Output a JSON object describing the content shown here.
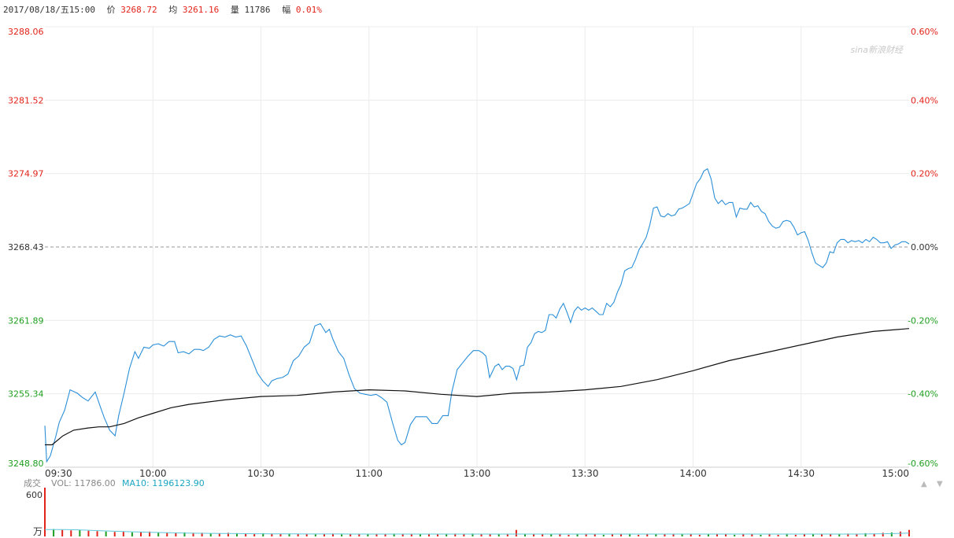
{
  "header": {
    "datetime": "2017/08/18/五15:00",
    "price_label": "价",
    "price": "3268.72",
    "avg_label": "均",
    "avg": "3261.16",
    "vol_label": "量",
    "vol": "11786",
    "change_label": "幅",
    "change": "0.01%"
  },
  "watermark": "sina新浪财经",
  "volume_panel": {
    "title": "成交",
    "vol_label": "VOL: 11786.00",
    "ma_label": "MA10: 1196123.90",
    "y_top_label": "600",
    "unit_label": "万",
    "arrow_up": "▲",
    "arrow_down": "▼"
  },
  "colors": {
    "price_line": "#2a8fd8",
    "avg_line": "#111111",
    "up": "#e2231a",
    "down": "#1e9e1e",
    "grid": "#ececec",
    "ref_line": "#999999",
    "ma_line": "#5ec8d8"
  },
  "chart_data": {
    "type": "line",
    "title": "",
    "xlabel": "",
    "ylabel": "",
    "ylim": [
      3248.8,
      3288.06
    ],
    "reference_price": 3268.43,
    "y_ticks_left": [
      "3288.06",
      "3281.52",
      "3274.97",
      "3268.43",
      "3261.89",
      "3255.34",
      "3248.80"
    ],
    "y_ticks_right": [
      "0.60%",
      "0.40%",
      "0.20%",
      "0.00%",
      "-0.20%",
      "-0.40%",
      "-0.60%"
    ],
    "x_ticks": [
      "09:30",
      "10:00",
      "10:30",
      "11:00",
      "13:00",
      "13:30",
      "14:00",
      "14:30",
      "15:00"
    ],
    "x_range_minutes": [
      0,
      240
    ],
    "series": [
      {
        "key": "price",
        "points": [
          [
            0,
            3252.5
          ],
          [
            0.5,
            3249.3
          ],
          [
            1.5,
            3249.8
          ],
          [
            3,
            3251.5
          ],
          [
            4,
            3252.8
          ],
          [
            5.5,
            3253.9
          ],
          [
            7,
            3255.7
          ],
          [
            9,
            3255.4
          ],
          [
            10.5,
            3255.0
          ],
          [
            12,
            3254.7
          ],
          [
            14,
            3255.5
          ],
          [
            15.5,
            3254.1
          ],
          [
            16.5,
            3253.2
          ],
          [
            18,
            3252.1
          ],
          [
            19.5,
            3251.6
          ],
          [
            20.5,
            3253.4
          ],
          [
            22,
            3255.4
          ],
          [
            23.5,
            3257.6
          ],
          [
            25,
            3259.1
          ],
          [
            26,
            3258.5
          ],
          [
            27.5,
            3259.5
          ],
          [
            29,
            3259.4
          ],
          [
            30,
            3259.7
          ],
          [
            31.5,
            3259.8
          ],
          [
            33,
            3259.6
          ],
          [
            34.5,
            3260.0
          ],
          [
            36,
            3260.0
          ],
          [
            37,
            3259.0
          ],
          [
            38.5,
            3259.1
          ],
          [
            40,
            3258.9
          ],
          [
            41.5,
            3259.3
          ],
          [
            43,
            3259.3
          ],
          [
            44,
            3259.2
          ],
          [
            45.5,
            3259.5
          ],
          [
            47,
            3260.2
          ],
          [
            48.5,
            3260.5
          ],
          [
            50,
            3260.4
          ],
          [
            51.5,
            3260.6
          ],
          [
            53,
            3260.4
          ],
          [
            54.5,
            3260.5
          ],
          [
            56,
            3259.6
          ],
          [
            57.5,
            3258.4
          ],
          [
            59,
            3257.2
          ],
          [
            60.5,
            3256.5
          ],
          [
            62,
            3256.0
          ],
          [
            63,
            3256.5
          ],
          [
            64.5,
            3256.7
          ],
          [
            66,
            3256.8
          ],
          [
            67.5,
            3257.1
          ],
          [
            69,
            3258.3
          ],
          [
            70.5,
            3258.7
          ],
          [
            72,
            3259.5
          ],
          [
            73.5,
            3259.9
          ],
          [
            75,
            3261.4
          ],
          [
            76.5,
            3261.6
          ],
          [
            78,
            3260.8
          ],
          [
            79,
            3261.1
          ],
          [
            80,
            3260.2
          ],
          [
            81.5,
            3259.1
          ],
          [
            83,
            3258.5
          ],
          [
            84.5,
            3257.0
          ],
          [
            86,
            3255.8
          ],
          [
            87.5,
            3255.4
          ],
          [
            89,
            3255.3
          ],
          [
            90.5,
            3255.2
          ],
          [
            92,
            3255.3
          ],
          [
            93.5,
            3255.0
          ],
          [
            95,
            3254.6
          ],
          [
            96.5,
            3252.8
          ],
          [
            98,
            3251.2
          ],
          [
            99,
            3250.8
          ],
          [
            100,
            3251.0
          ],
          [
            101.5,
            3252.6
          ],
          [
            103,
            3253.3
          ],
          [
            104.5,
            3253.3
          ],
          [
            106,
            3253.3
          ],
          [
            107.5,
            3252.7
          ],
          [
            109,
            3252.7
          ],
          [
            110.5,
            3253.4
          ],
          [
            112,
            3253.4
          ],
          [
            113,
            3255.5
          ],
          [
            114.5,
            3257.5
          ],
          [
            116,
            3258.1
          ],
          [
            117.5,
            3258.7
          ],
          [
            119,
            3259.2
          ],
          [
            120.5,
            3259.2
          ],
          [
            121.5,
            3259.0
          ],
          [
            122.5,
            3258.7
          ],
          [
            123.5,
            3256.8
          ],
          [
            125,
            3257.8
          ],
          [
            126,
            3258.0
          ],
          [
            127,
            3257.5
          ],
          [
            128,
            3257.8
          ],
          [
            129,
            3257.8
          ],
          [
            130,
            3257.6
          ],
          [
            131,
            3256.6
          ],
          [
            132,
            3257.8
          ],
          [
            133,
            3257.9
          ],
          [
            134,
            3259.5
          ],
          [
            135,
            3259.9
          ],
          [
            136,
            3260.7
          ],
          [
            137,
            3260.9
          ],
          [
            138,
            3260.8
          ],
          [
            139,
            3261.0
          ],
          [
            140,
            3262.4
          ],
          [
            141,
            3262.4
          ],
          [
            142,
            3262.1
          ],
          [
            143,
            3262.9
          ],
          [
            144,
            3263.4
          ],
          [
            145,
            3262.6
          ],
          [
            146,
            3261.7
          ],
          [
            147,
            3262.7
          ],
          [
            148,
            3263.1
          ],
          [
            149,
            3262.8
          ],
          [
            150,
            3263.0
          ],
          [
            151,
            3262.8
          ],
          [
            152,
            3263.0
          ],
          [
            153,
            3262.7
          ],
          [
            154,
            3262.4
          ],
          [
            155,
            3262.4
          ],
          [
            156,
            3263.4
          ],
          [
            157,
            3263.1
          ],
          [
            158,
            3263.5
          ],
          [
            159,
            3264.4
          ],
          [
            160,
            3265.1
          ],
          [
            161,
            3266.3
          ],
          [
            162,
            3266.5
          ],
          [
            163,
            3266.6
          ],
          [
            164,
            3267.3
          ],
          [
            165,
            3268.2
          ],
          [
            166,
            3268.7
          ],
          [
            167,
            3269.3
          ],
          [
            168,
            3270.4
          ],
          [
            169,
            3271.9
          ],
          [
            170,
            3272.0
          ],
          [
            171,
            3271.2
          ],
          [
            172,
            3271.1
          ],
          [
            173,
            3271.4
          ],
          [
            174,
            3271.2
          ],
          [
            175,
            3271.3
          ],
          [
            176,
            3271.8
          ],
          [
            177,
            3271.9
          ],
          [
            178,
            3272.1
          ],
          [
            179,
            3272.3
          ],
          [
            180,
            3273.2
          ],
          [
            181,
            3274.1
          ],
          [
            182,
            3274.5
          ],
          [
            183,
            3275.2
          ],
          [
            184,
            3275.4
          ],
          [
            185,
            3274.5
          ],
          [
            186,
            3272.8
          ],
          [
            187,
            3272.3
          ],
          [
            188,
            3272.6
          ],
          [
            189,
            3272.2
          ],
          [
            190,
            3272.4
          ],
          [
            191,
            3272.4
          ],
          [
            192,
            3271.1
          ],
          [
            193,
            3271.9
          ],
          [
            194,
            3271.8
          ],
          [
            195,
            3271.8
          ],
          [
            196,
            3272.4
          ],
          [
            197,
            3272.0
          ],
          [
            198,
            3272.1
          ],
          [
            199,
            3271.6
          ],
          [
            200,
            3271.4
          ],
          [
            201,
            3270.7
          ],
          [
            202,
            3270.3
          ],
          [
            203,
            3270.1
          ],
          [
            204,
            3270.2
          ],
          [
            205,
            3270.7
          ],
          [
            206,
            3270.8
          ],
          [
            207,
            3270.7
          ],
          [
            208,
            3270.2
          ],
          [
            209,
            3269.5
          ],
          [
            210,
            3269.7
          ],
          [
            211,
            3269.8
          ],
          [
            212,
            3269.0
          ],
          [
            213,
            3267.9
          ],
          [
            214,
            3267.0
          ],
          [
            215,
            3266.8
          ],
          [
            216,
            3266.6
          ],
          [
            217,
            3267.0
          ],
          [
            218,
            3268.0
          ],
          [
            219,
            3267.9
          ],
          [
            220,
            3268.8
          ],
          [
            221,
            3269.1
          ],
          [
            222,
            3269.1
          ],
          [
            223,
            3268.8
          ],
          [
            224,
            3269.0
          ],
          [
            225,
            3268.9
          ],
          [
            226,
            3269.0
          ],
          [
            227,
            3268.8
          ],
          [
            228,
            3269.1
          ],
          [
            229,
            3268.9
          ],
          [
            230,
            3269.3
          ],
          [
            231,
            3269.1
          ],
          [
            232,
            3268.8
          ],
          [
            233,
            3268.8
          ],
          [
            234,
            3268.9
          ],
          [
            235,
            3268.3
          ],
          [
            236,
            3268.6
          ],
          [
            237,
            3268.7
          ],
          [
            238,
            3268.9
          ],
          [
            239,
            3268.9
          ],
          [
            240,
            3268.7
          ]
        ]
      },
      {
        "key": "average",
        "points": [
          [
            0,
            3250.8
          ],
          [
            2,
            3250.8
          ],
          [
            5,
            3251.6
          ],
          [
            8,
            3252.1
          ],
          [
            12,
            3252.3
          ],
          [
            15,
            3252.4
          ],
          [
            18,
            3252.4
          ],
          [
            22,
            3252.7
          ],
          [
            26,
            3253.2
          ],
          [
            30,
            3253.6
          ],
          [
            35,
            3254.1
          ],
          [
            40,
            3254.4
          ],
          [
            50,
            3254.8
          ],
          [
            60,
            3255.1
          ],
          [
            70,
            3255.2
          ],
          [
            80,
            3255.5
          ],
          [
            90,
            3255.7
          ],
          [
            100,
            3255.6
          ],
          [
            110,
            3255.3
          ],
          [
            120,
            3255.1
          ],
          [
            130,
            3255.4
          ],
          [
            140,
            3255.5
          ],
          [
            150,
            3255.7
          ],
          [
            160,
            3256.0
          ],
          [
            170,
            3256.6
          ],
          [
            180,
            3257.4
          ],
          [
            190,
            3258.3
          ],
          [
            200,
            3259.0
          ],
          [
            210,
            3259.7
          ],
          [
            220,
            3260.4
          ],
          [
            230,
            3260.9
          ],
          [
            240,
            3261.16
          ]
        ]
      }
    ],
    "volume": {
      "ymax": 600,
      "bars_up": [
        650,
        90,
        80,
        75,
        80,
        70,
        65,
        60,
        55,
        60,
        50,
        55,
        60,
        50,
        45,
        40,
        50,
        45,
        45,
        35,
        40,
        45,
        40,
        35,
        30,
        40,
        35,
        30,
        35,
        30,
        30,
        25,
        30,
        35,
        25,
        30,
        30,
        25,
        30,
        25,
        35,
        30,
        25,
        25,
        30,
        25,
        30,
        35,
        30,
        35,
        30,
        25,
        25,
        30,
        80,
        30,
        25,
        30,
        25,
        30,
        20,
        25,
        30,
        25,
        20,
        25,
        30,
        25,
        20,
        25,
        30,
        25,
        25,
        30,
        25,
        20,
        25,
        30,
        25,
        20,
        30,
        25,
        20,
        25,
        20,
        25,
        20,
        25,
        25,
        30,
        25,
        30,
        35,
        30,
        40,
        35,
        45,
        50,
        60,
        80
      ],
      "ma10": [
        85,
        85,
        84,
        83,
        80,
        76,
        72,
        68,
        64,
        60,
        57,
        54,
        51,
        48,
        46,
        44,
        42,
        40,
        39,
        38,
        37,
        36,
        35,
        34,
        33,
        33,
        32,
        32,
        31,
        31,
        30,
        30,
        30,
        30,
        30,
        29,
        29,
        29,
        29,
        29,
        29,
        29,
        29,
        29,
        29,
        29,
        29,
        29,
        29,
        29,
        29,
        29,
        29,
        29,
        29,
        29,
        29,
        29,
        29,
        29,
        29,
        29,
        29,
        29,
        29,
        29,
        29,
        29,
        29,
        29,
        29,
        29,
        29,
        29,
        29,
        29,
        29,
        29,
        29,
        29,
        29,
        29,
        29,
        29,
        29,
        29,
        29,
        29,
        29,
        29,
        29,
        29,
        29,
        29,
        30,
        31,
        33,
        35,
        38,
        42
      ]
    }
  }
}
